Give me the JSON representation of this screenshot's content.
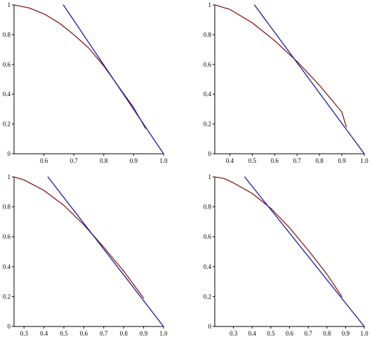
{
  "colors": {
    "curve": "#8b1a1a",
    "line": "#1a1aa0",
    "axis": "#000000"
  },
  "chart_data": [
    {
      "type": "line",
      "xlim": [
        0.5,
        1.0
      ],
      "ylim": [
        0,
        1
      ],
      "xticks": [
        0.6,
        0.7,
        0.8,
        0.9,
        1.0
      ],
      "xtick_labels": [
        "0.6",
        "0.7",
        "0.8",
        "0.9",
        "1.0"
      ],
      "yticks": [
        0,
        0.2,
        0.4,
        0.6,
        0.8,
        1
      ],
      "ytick_labels": [
        "0",
        "0.2",
        "0.4",
        "0.6",
        "0.8",
        "1"
      ],
      "series": [
        {
          "kind": "curve",
          "color": "#8b1a1a",
          "x": [
            0.5,
            0.55,
            0.6,
            0.65,
            0.7,
            0.75,
            0.8,
            0.85,
            0.9,
            0.94
          ],
          "y": [
            1.0,
            0.98,
            0.94,
            0.88,
            0.8,
            0.71,
            0.59,
            0.45,
            0.31,
            0.17
          ]
        },
        {
          "kind": "line",
          "color": "#1a1aa0",
          "x": [
            0.665,
            1.0
          ],
          "y": [
            1.0,
            0.0
          ]
        }
      ]
    },
    {
      "type": "line",
      "xlim": [
        0.333,
        1.0
      ],
      "ylim": [
        0,
        1
      ],
      "xticks": [
        0.4,
        0.5,
        0.6,
        0.7,
        0.8,
        0.9,
        1.0
      ],
      "xtick_labels": [
        "0.4",
        "0.5",
        "0.6",
        "0.7",
        "0.8",
        "0.9",
        "1.0"
      ],
      "yticks": [
        0,
        0.2,
        0.4,
        0.6,
        0.8,
        1
      ],
      "ytick_labels": [
        "0",
        "0.2",
        "0.4",
        "0.6",
        "0.8",
        "1"
      ],
      "series": [
        {
          "kind": "curve",
          "color": "#8b1a1a",
          "x": [
            0.333,
            0.4,
            0.5,
            0.6,
            0.7,
            0.8,
            0.9,
            0.92
          ],
          "y": [
            1.0,
            0.97,
            0.88,
            0.76,
            0.62,
            0.46,
            0.28,
            0.18
          ]
        },
        {
          "kind": "line",
          "color": "#1a1aa0",
          "x": [
            0.51,
            1.0
          ],
          "y": [
            1.0,
            0.0
          ]
        }
      ]
    },
    {
      "type": "line",
      "xlim": [
        0.25,
        1.0
      ],
      "ylim": [
        0,
        1
      ],
      "xticks": [
        0.3,
        0.4,
        0.5,
        0.6,
        0.7,
        0.8,
        0.9,
        1.0
      ],
      "xtick_labels": [
        "0.3",
        "0.4",
        "0.5",
        "0.6",
        "0.7",
        "0.8",
        "0.9",
        "1.0"
      ],
      "yticks": [
        0,
        0.2,
        0.4,
        0.6,
        0.8,
        1
      ],
      "ytick_labels": [
        "0",
        "0.2",
        "0.4",
        "0.6",
        "0.8",
        "1"
      ],
      "series": [
        {
          "kind": "curve",
          "color": "#8b1a1a",
          "x": [
            0.25,
            0.3,
            0.4,
            0.5,
            0.6,
            0.7,
            0.8,
            0.9
          ],
          "y": [
            1.0,
            0.98,
            0.91,
            0.81,
            0.68,
            0.53,
            0.37,
            0.19
          ]
        },
        {
          "kind": "line",
          "color": "#1a1aa0",
          "x": [
            0.42,
            1.0
          ],
          "y": [
            1.0,
            0.0
          ]
        }
      ]
    },
    {
      "type": "line",
      "xlim": [
        0.2,
        1.0
      ],
      "ylim": [
        0,
        1
      ],
      "xticks": [
        0.3,
        0.4,
        0.5,
        0.6,
        0.7,
        0.8,
        0.9,
        1.0
      ],
      "xtick_labels": [
        "0.3",
        "0.4",
        "0.5",
        "0.6",
        "0.7",
        "0.8",
        "0.9",
        "1.0"
      ],
      "yticks": [
        0,
        0.2,
        0.4,
        0.6,
        0.8,
        1
      ],
      "ytick_labels": [
        "0",
        "0.2",
        "0.4",
        "0.6",
        "0.8",
        "1"
      ],
      "series": [
        {
          "kind": "curve",
          "color": "#8b1a1a",
          "x": [
            0.2,
            0.25,
            0.3,
            0.4,
            0.5,
            0.6,
            0.7,
            0.8,
            0.88
          ],
          "y": [
            1.0,
            0.99,
            0.96,
            0.89,
            0.79,
            0.66,
            0.51,
            0.35,
            0.2
          ]
        },
        {
          "kind": "line",
          "color": "#1a1aa0",
          "x": [
            0.36,
            1.0
          ],
          "y": [
            1.0,
            0.0
          ]
        }
      ]
    }
  ]
}
